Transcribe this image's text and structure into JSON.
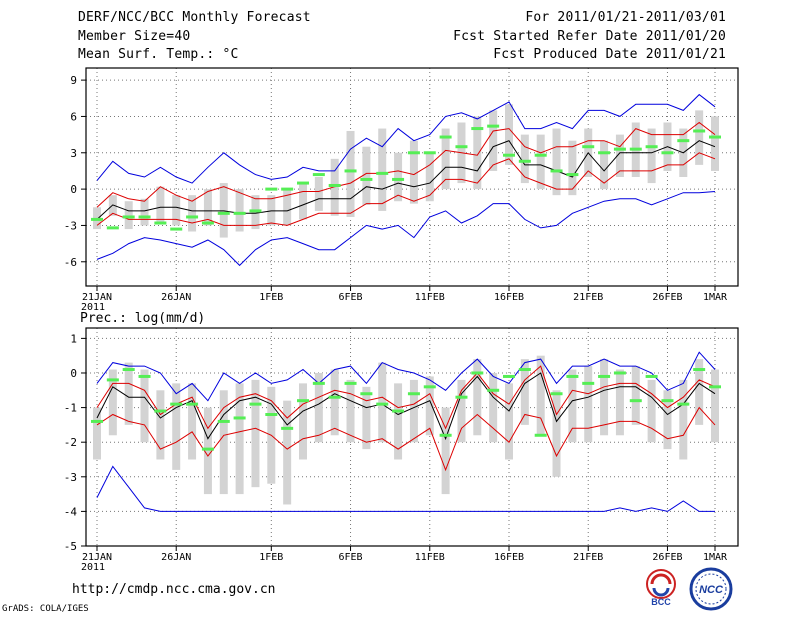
{
  "header": {
    "title": "DERF/NCC/BCC Monthly Forecast",
    "member_size": "Member Size=40",
    "variable": "Mean Surf. Temp.: °C",
    "period": "For 2011/01/21-2011/03/01",
    "start_date": "Fcst Started Refer Date 2011/01/20",
    "produced_date": "Fcst Produced Date 2011/01/21"
  },
  "footer": {
    "url": "http://cmdp.ncc.cma.gov.cn",
    "credit": "GrADS: COLA/IGES",
    "logo_bcc": "BCC",
    "logo_ncc": "NCC"
  },
  "colors": {
    "box": "#d3d3d3",
    "observation": "#55ee55",
    "mean": "#000000",
    "inner_range": "#dd0000",
    "outer_range": "#0000dd",
    "grid": "#777777"
  },
  "chart_data": [
    {
      "type": "line",
      "title": "Mean Surf. Temp.: °C",
      "xlabel": "",
      "ylabel": "",
      "ylim": [
        -8,
        10
      ],
      "yticks": [
        -6,
        -3,
        0,
        3,
        6,
        9
      ],
      "ytick_labels": [
        "-6",
        "-3",
        "0",
        "3",
        "6",
        "9"
      ],
      "x_count": 40,
      "xtick_days": [
        0,
        5,
        11,
        16,
        21,
        26,
        31,
        36,
        39
      ],
      "xtick_labels": [
        "21JAN",
        "26JAN",
        "1FEB",
        "6FEB",
        "11FEB",
        "16FEB",
        "21FEB",
        "26FEB",
        "1MAR"
      ],
      "year_label": "2011",
      "series": [
        {
          "name": "ensemble max",
          "values": [
            0.7,
            2.3,
            1.3,
            1.0,
            1.8,
            1.0,
            0.5,
            1.8,
            3.0,
            2.0,
            1.2,
            0.8,
            1.0,
            1.8,
            1.5,
            1.5,
            3.3,
            4.2,
            3.5,
            5.0,
            4.0,
            4.5,
            6.0,
            6.3,
            5.8,
            6.5,
            7.2,
            5.0,
            5.0,
            5.5,
            5.0,
            6.5,
            6.5,
            6.0,
            7.0,
            7.0,
            7.0,
            6.5,
            7.8,
            6.8
          ]
        },
        {
          "name": "upper percentile",
          "values": [
            -1.5,
            -0.3,
            -0.8,
            -1.0,
            0.2,
            -0.5,
            -1.0,
            -0.2,
            0.2,
            -0.3,
            -0.8,
            -0.8,
            -0.5,
            -0.2,
            -0.2,
            0.2,
            0.5,
            1.3,
            1.3,
            1.5,
            1.2,
            2.0,
            3.2,
            3.0,
            2.8,
            4.8,
            5.0,
            3.5,
            3.0,
            3.5,
            3.5,
            4.0,
            4.0,
            3.5,
            5.0,
            4.5,
            4.5,
            4.5,
            5.5,
            4.5
          ]
        },
        {
          "name": "ensemble mean",
          "values": [
            -2.5,
            -1.3,
            -1.8,
            -1.8,
            -1.5,
            -1.5,
            -1.8,
            -1.8,
            -1.8,
            -2.0,
            -2.0,
            -1.8,
            -1.8,
            -1.3,
            -0.8,
            -0.8,
            -0.8,
            0.2,
            0.0,
            0.5,
            0.2,
            0.5,
            1.8,
            1.8,
            1.5,
            3.5,
            4.0,
            2.0,
            2.0,
            1.5,
            1.0,
            3.0,
            1.5,
            3.0,
            3.0,
            3.0,
            3.5,
            3.0,
            4.0,
            3.5
          ]
        },
        {
          "name": "lower percentile",
          "values": [
            -3.0,
            -2.0,
            -2.5,
            -2.5,
            -2.5,
            -2.5,
            -2.8,
            -2.5,
            -3.0,
            -3.0,
            -3.0,
            -2.8,
            -3.0,
            -2.5,
            -2.0,
            -2.0,
            -2.0,
            -1.2,
            -1.2,
            -0.5,
            -1.0,
            -0.5,
            0.8,
            0.8,
            0.5,
            2.0,
            2.5,
            1.0,
            0.5,
            0.0,
            0.0,
            1.5,
            0.5,
            1.5,
            1.5,
            1.5,
            2.0,
            2.0,
            3.0,
            2.5
          ]
        },
        {
          "name": "ensemble min",
          "values": [
            -5.8,
            -5.3,
            -4.5,
            -4.0,
            -4.2,
            -4.5,
            -4.8,
            -4.2,
            -5.0,
            -6.3,
            -5.0,
            -4.2,
            -4.0,
            -4.5,
            -5.0,
            -5.0,
            -4.0,
            -3.0,
            -3.3,
            -3.0,
            -4.0,
            -2.3,
            -1.8,
            -2.8,
            -2.2,
            -1.2,
            -1.2,
            -2.5,
            -3.2,
            -3.0,
            -2.0,
            -1.5,
            -1.0,
            -0.8,
            -0.8,
            -1.3,
            -0.8,
            -0.3,
            -0.3,
            -0.2
          ]
        }
      ],
      "observations": [
        -2.5,
        -3.2,
        -2.3,
        -2.3,
        -2.8,
        -3.3,
        -2.3,
        -2.8,
        -2.0,
        -2.0,
        -1.8,
        0.0,
        0.0,
        0.5,
        1.2,
        0.3,
        1.5,
        0.8,
        1.3,
        0.8,
        3.0,
        3.0,
        4.3,
        3.5,
        5.0,
        5.2,
        2.8,
        2.3,
        2.8,
        1.5,
        1.2,
        3.5,
        3.0,
        3.3,
        3.3,
        3.5,
        3.0,
        4.0,
        4.8,
        4.3
      ],
      "box_low": [
        -3.3,
        -2.2,
        -3.3,
        -3.0,
        -2.8,
        -3.0,
        -3.5,
        -3.0,
        -4.0,
        -3.5,
        -3.3,
        -3.0,
        -3.0,
        -2.5,
        -1.8,
        -2.2,
        -2.3,
        -1.3,
        -1.8,
        -1.0,
        -1.2,
        -1.0,
        0.0,
        0.5,
        0.0,
        1.5,
        2.0,
        0.5,
        0.0,
        -0.5,
        -0.5,
        1.0,
        0.0,
        1.0,
        1.0,
        0.5,
        1.5,
        1.0,
        2.0,
        1.5
      ],
      "box_high": [
        -1.5,
        -0.5,
        -1.0,
        -0.8,
        0.2,
        -0.5,
        -0.5,
        0.0,
        0.5,
        0.0,
        -0.5,
        -0.5,
        0.0,
        0.5,
        1.0,
        2.5,
        4.8,
        3.5,
        5.0,
        3.0,
        4.0,
        3.0,
        5.0,
        5.5,
        6.0,
        6.5,
        7.0,
        4.5,
        4.5,
        5.0,
        4.0,
        5.0,
        4.0,
        4.5,
        5.5,
        5.0,
        5.5,
        5.0,
        6.5,
        6.0
      ]
    },
    {
      "type": "line",
      "title": "Prec.: log(mm/d)",
      "xlabel": "",
      "ylabel": "",
      "ylim": [
        -5,
        1.3
      ],
      "yticks": [
        -5,
        -4,
        -3,
        -2,
        -1,
        0,
        1
      ],
      "ytick_labels": [
        "-5",
        "-4",
        "-3",
        "-2",
        "-1",
        "0",
        "1"
      ],
      "x_count": 40,
      "xtick_days": [
        0,
        5,
        11,
        16,
        21,
        26,
        31,
        36,
        39
      ],
      "xtick_labels": [
        "21JAN",
        "26JAN",
        "1FEB",
        "6FEB",
        "11FEB",
        "16FEB",
        "21FEB",
        "26FEB",
        "1MAR"
      ],
      "year_label": "2011",
      "series": [
        {
          "name": "ensemble max",
          "values": [
            -0.3,
            0.3,
            0.2,
            0.2,
            0.0,
            -0.6,
            -0.3,
            -0.8,
            0.0,
            -0.3,
            0.0,
            -0.3,
            -0.2,
            0.1,
            -0.3,
            0.1,
            0.2,
            -0.3,
            0.3,
            0.1,
            0.0,
            -0.2,
            -0.5,
            0.0,
            0.4,
            -0.1,
            -0.3,
            0.3,
            0.4,
            -0.3,
            0.2,
            0.2,
            0.4,
            0.2,
            0.2,
            0.0,
            -0.5,
            -0.3,
            0.6,
            0.1
          ]
        },
        {
          "name": "upper percentile",
          "values": [
            -1.0,
            -0.3,
            -0.3,
            -0.5,
            -1.2,
            -0.9,
            -0.7,
            -1.6,
            -1.0,
            -0.7,
            -0.6,
            -0.8,
            -1.3,
            -0.9,
            -0.7,
            -0.5,
            -0.6,
            -0.8,
            -0.7,
            -1.0,
            -0.9,
            -0.6,
            -1.6,
            -0.5,
            0.0,
            -0.6,
            -0.9,
            -0.2,
            0.2,
            -1.2,
            -0.5,
            -0.6,
            -0.4,
            -0.3,
            -0.3,
            -0.6,
            -1.0,
            -0.7,
            -0.2,
            -0.4
          ]
        },
        {
          "name": "ensemble mean",
          "values": [
            -1.3,
            -0.4,
            -0.7,
            -0.7,
            -1.3,
            -1.0,
            -0.8,
            -1.9,
            -1.2,
            -0.8,
            -0.7,
            -0.9,
            -1.5,
            -1.1,
            -0.9,
            -0.6,
            -0.8,
            -1.0,
            -0.9,
            -1.2,
            -1.0,
            -0.8,
            -1.9,
            -0.6,
            -0.1,
            -0.7,
            -1.1,
            -0.3,
            0.0,
            -1.4,
            -0.8,
            -0.7,
            -0.5,
            -0.4,
            -0.4,
            -0.7,
            -1.2,
            -0.9,
            -0.3,
            -0.6
          ]
        },
        {
          "name": "lower percentile",
          "values": [
            -1.5,
            -1.2,
            -1.4,
            -1.5,
            -2.2,
            -2.0,
            -1.7,
            -2.4,
            -1.8,
            -1.7,
            -1.6,
            -1.8,
            -2.2,
            -1.9,
            -1.8,
            -1.6,
            -1.8,
            -2.0,
            -1.9,
            -2.2,
            -1.9,
            -1.6,
            -2.8,
            -1.6,
            -1.2,
            -1.6,
            -2.0,
            -1.2,
            -1.3,
            -2.4,
            -1.6,
            -1.6,
            -1.5,
            -1.4,
            -1.4,
            -1.6,
            -1.9,
            -1.8,
            -1.0,
            -1.5
          ]
        },
        {
          "name": "ensemble min",
          "values": [
            -3.6,
            -2.7,
            -3.3,
            -3.9,
            -4.0,
            -4.0,
            -4.0,
            -4.0,
            -4.0,
            -4.0,
            -4.0,
            -4.0,
            -4.0,
            -4.0,
            -4.0,
            -4.0,
            -4.0,
            -4.0,
            -4.0,
            -4.0,
            -4.0,
            -4.0,
            -4.0,
            -4.0,
            -4.0,
            -4.0,
            -4.0,
            -4.0,
            -4.0,
            -4.0,
            -4.0,
            -4.0,
            -4.0,
            -3.9,
            -4.0,
            -3.9,
            -4.0,
            -3.7,
            -4.0,
            -4.0
          ]
        }
      ],
      "observations": [
        -1.4,
        -0.2,
        0.1,
        -0.1,
        -1.1,
        -0.9,
        -0.9,
        -2.2,
        -1.4,
        -1.3,
        -0.9,
        -1.2,
        -1.6,
        -0.8,
        -0.3,
        -0.7,
        -0.3,
        -0.6,
        -0.9,
        -1.1,
        -0.6,
        -0.4,
        -1.8,
        -0.7,
        0.0,
        -0.5,
        -0.1,
        0.1,
        -1.8,
        -0.6,
        -0.1,
        -0.3,
        -0.1,
        0.0,
        -0.8,
        -0.1,
        -0.8,
        -0.9,
        0.1,
        -0.4
      ],
      "box_low": [
        -2.5,
        -1.8,
        -1.5,
        -2.0,
        -2.5,
        -2.8,
        -2.5,
        -3.5,
        -3.5,
        -3.5,
        -3.3,
        -3.2,
        -3.8,
        -2.5,
        -2.0,
        -1.8,
        -2.0,
        -2.2,
        -2.0,
        -2.5,
        -2.0,
        -1.8,
        -3.5,
        -2.0,
        -1.8,
        -2.0,
        -2.5,
        -1.5,
        -1.8,
        -3.0,
        -2.0,
        -2.0,
        -1.8,
        -1.8,
        -1.5,
        -2.0,
        -2.2,
        -2.5,
        -1.5,
        -2.0
      ],
      "box_high": [
        -1.0,
        0.1,
        0.3,
        0.1,
        -0.5,
        -0.3,
        -0.3,
        -1.0,
        -0.5,
        -0.3,
        -0.2,
        -0.4,
        -0.8,
        -0.3,
        0.0,
        0.1,
        -0.2,
        -0.4,
        0.3,
        -0.3,
        -0.2,
        -0.1,
        -1.0,
        -0.2,
        0.4,
        0.0,
        -0.3,
        0.4,
        0.5,
        -0.5,
        0.1,
        0.2,
        0.4,
        0.1,
        0.2,
        -0.2,
        -0.5,
        -0.2,
        0.4,
        0.1
      ]
    }
  ]
}
